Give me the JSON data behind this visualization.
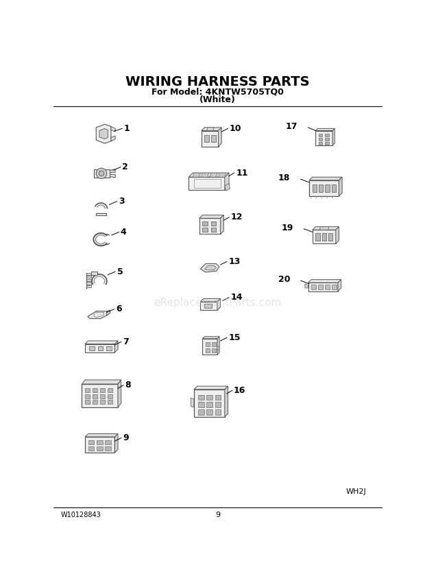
{
  "title": "WIRING HARNESS PARTS",
  "subtitle1": "For Model: 4KNTW5705TQ0",
  "subtitle2": "(White)",
  "footer_left": "W10128843",
  "footer_center": "9",
  "footer_right": "WH2J",
  "watermark": "eReplacementParts.com",
  "bg_color": "#ffffff",
  "line_color": "#555555",
  "face_color": "#f2f2f2",
  "shade_color": "#d8d8d8",
  "dark_color": "#888888"
}
